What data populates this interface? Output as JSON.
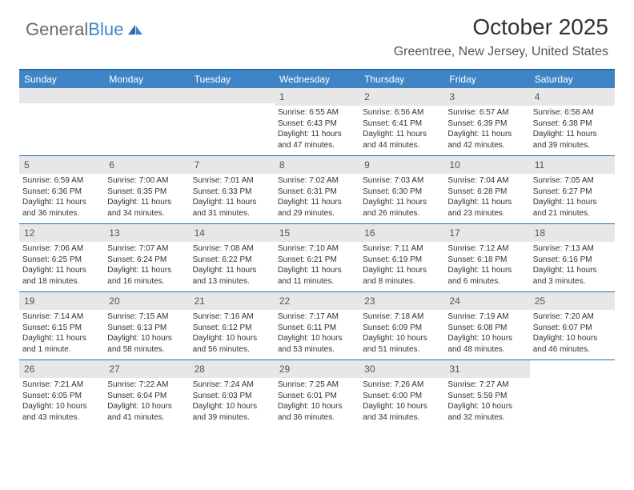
{
  "brand": {
    "name_gray": "General",
    "name_blue": "Blue"
  },
  "title": "October 2025",
  "location": "Greentree, New Jersey, United States",
  "colors": {
    "header_bg": "#3f85c6",
    "header_border": "#2a6ca8",
    "daynum_bg": "#e7e7e7",
    "text": "#333333",
    "muted": "#555555",
    "white": "#ffffff"
  },
  "weekdays": [
    "Sunday",
    "Monday",
    "Tuesday",
    "Wednesday",
    "Thursday",
    "Friday",
    "Saturday"
  ],
  "weeks": [
    [
      {
        "blank": true
      },
      {
        "blank": true
      },
      {
        "blank": true
      },
      {
        "n": "1",
        "sunrise": "6:55 AM",
        "sunset": "6:43 PM",
        "day_h": "11",
        "day_m": "47"
      },
      {
        "n": "2",
        "sunrise": "6:56 AM",
        "sunset": "6:41 PM",
        "day_h": "11",
        "day_m": "44"
      },
      {
        "n": "3",
        "sunrise": "6:57 AM",
        "sunset": "6:39 PM",
        "day_h": "11",
        "day_m": "42"
      },
      {
        "n": "4",
        "sunrise": "6:58 AM",
        "sunset": "6:38 PM",
        "day_h": "11",
        "day_m": "39"
      }
    ],
    [
      {
        "n": "5",
        "sunrise": "6:59 AM",
        "sunset": "6:36 PM",
        "day_h": "11",
        "day_m": "36"
      },
      {
        "n": "6",
        "sunrise": "7:00 AM",
        "sunset": "6:35 PM",
        "day_h": "11",
        "day_m": "34"
      },
      {
        "n": "7",
        "sunrise": "7:01 AM",
        "sunset": "6:33 PM",
        "day_h": "11",
        "day_m": "31"
      },
      {
        "n": "8",
        "sunrise": "7:02 AM",
        "sunset": "6:31 PM",
        "day_h": "11",
        "day_m": "29"
      },
      {
        "n": "9",
        "sunrise": "7:03 AM",
        "sunset": "6:30 PM",
        "day_h": "11",
        "day_m": "26"
      },
      {
        "n": "10",
        "sunrise": "7:04 AM",
        "sunset": "6:28 PM",
        "day_h": "11",
        "day_m": "23"
      },
      {
        "n": "11",
        "sunrise": "7:05 AM",
        "sunset": "6:27 PM",
        "day_h": "11",
        "day_m": "21"
      }
    ],
    [
      {
        "n": "12",
        "sunrise": "7:06 AM",
        "sunset": "6:25 PM",
        "day_h": "11",
        "day_m": "18"
      },
      {
        "n": "13",
        "sunrise": "7:07 AM",
        "sunset": "6:24 PM",
        "day_h": "11",
        "day_m": "16"
      },
      {
        "n": "14",
        "sunrise": "7:08 AM",
        "sunset": "6:22 PM",
        "day_h": "11",
        "day_m": "13"
      },
      {
        "n": "15",
        "sunrise": "7:10 AM",
        "sunset": "6:21 PM",
        "day_h": "11",
        "day_m": "11"
      },
      {
        "n": "16",
        "sunrise": "7:11 AM",
        "sunset": "6:19 PM",
        "day_h": "11",
        "day_m": "8"
      },
      {
        "n": "17",
        "sunrise": "7:12 AM",
        "sunset": "6:18 PM",
        "day_h": "11",
        "day_m": "6"
      },
      {
        "n": "18",
        "sunrise": "7:13 AM",
        "sunset": "6:16 PM",
        "day_h": "11",
        "day_m": "3"
      }
    ],
    [
      {
        "n": "19",
        "sunrise": "7:14 AM",
        "sunset": "6:15 PM",
        "day_h": "11",
        "day_m": "1"
      },
      {
        "n": "20",
        "sunrise": "7:15 AM",
        "sunset": "6:13 PM",
        "day_h": "10",
        "day_m": "58"
      },
      {
        "n": "21",
        "sunrise": "7:16 AM",
        "sunset": "6:12 PM",
        "day_h": "10",
        "day_m": "56"
      },
      {
        "n": "22",
        "sunrise": "7:17 AM",
        "sunset": "6:11 PM",
        "day_h": "10",
        "day_m": "53"
      },
      {
        "n": "23",
        "sunrise": "7:18 AM",
        "sunset": "6:09 PM",
        "day_h": "10",
        "day_m": "51"
      },
      {
        "n": "24",
        "sunrise": "7:19 AM",
        "sunset": "6:08 PM",
        "day_h": "10",
        "day_m": "48"
      },
      {
        "n": "25",
        "sunrise": "7:20 AM",
        "sunset": "6:07 PM",
        "day_h": "10",
        "day_m": "46"
      }
    ],
    [
      {
        "n": "26",
        "sunrise": "7:21 AM",
        "sunset": "6:05 PM",
        "day_h": "10",
        "day_m": "43"
      },
      {
        "n": "27",
        "sunrise": "7:22 AM",
        "sunset": "6:04 PM",
        "day_h": "10",
        "day_m": "41"
      },
      {
        "n": "28",
        "sunrise": "7:24 AM",
        "sunset": "6:03 PM",
        "day_h": "10",
        "day_m": "39"
      },
      {
        "n": "29",
        "sunrise": "7:25 AM",
        "sunset": "6:01 PM",
        "day_h": "10",
        "day_m": "36"
      },
      {
        "n": "30",
        "sunrise": "7:26 AM",
        "sunset": "6:00 PM",
        "day_h": "10",
        "day_m": "34"
      },
      {
        "n": "31",
        "sunrise": "7:27 AM",
        "sunset": "5:59 PM",
        "day_h": "10",
        "day_m": "32"
      },
      {
        "blank": true,
        "noborder": true
      }
    ]
  ],
  "labels": {
    "sunrise": "Sunrise:",
    "sunset": "Sunset:",
    "daylight": "Daylight:",
    "hours": "hours",
    "and": "and",
    "minute": "minute.",
    "minutes": "minutes."
  }
}
